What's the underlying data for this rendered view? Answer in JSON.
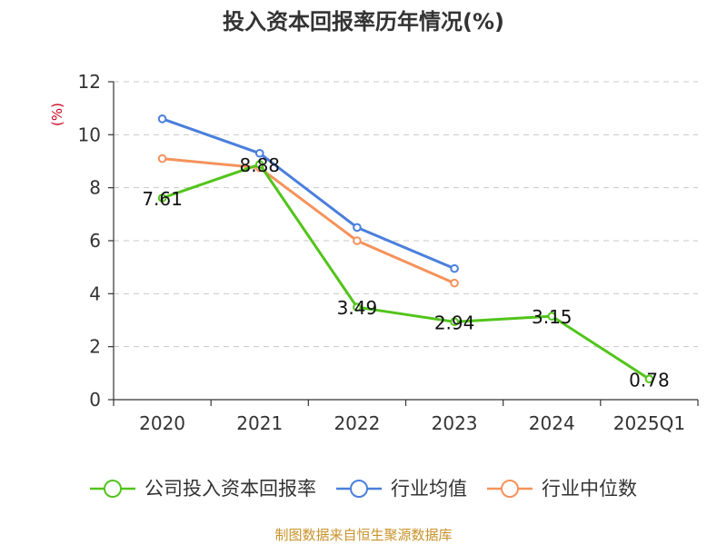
{
  "title": "投入资本回报率历年情况(%)",
  "source": "制图数据来自恒生聚源数据库",
  "chart_data": {
    "type": "line",
    "title": "投入资本回报率历年情况(%)",
    "ylabel": "(%)",
    "xlabel": "",
    "categories": [
      "2020",
      "2021",
      "2022",
      "2023",
      "2024",
      "2025Q1"
    ],
    "ylim": [
      0,
      12
    ],
    "yticks": [
      0,
      2,
      4,
      6,
      8,
      10,
      12
    ],
    "grid": true,
    "legend_position": "bottom",
    "series": [
      {
        "name": "公司投入资本回报率",
        "color": "#52c41a",
        "values": [
          7.61,
          8.88,
          3.49,
          2.94,
          3.15,
          0.78
        ],
        "labels": [
          "7.61",
          "8.88",
          "3.49",
          "2.94",
          "3.15",
          "0.78"
        ]
      },
      {
        "name": "行业均值",
        "color": "#4a7fdd",
        "values": [
          10.6,
          9.3,
          6.5,
          4.95,
          null,
          null
        ]
      },
      {
        "name": "行业中位数",
        "color": "#f5925b",
        "values": [
          9.1,
          8.75,
          6.0,
          4.4,
          null,
          null
        ]
      }
    ]
  }
}
